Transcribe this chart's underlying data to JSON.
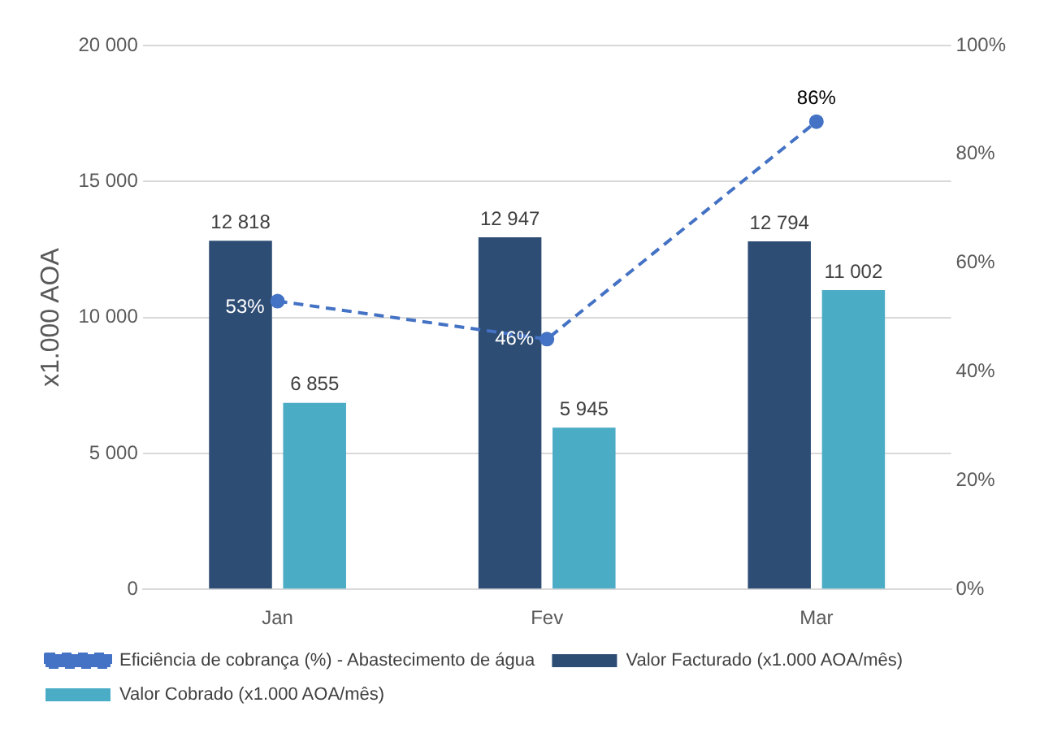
{
  "chart_data": {
    "type": "bar",
    "ylabel": "x1.000 AOA",
    "categories": [
      "Jan",
      "Fev",
      "Mar"
    ],
    "series": [
      {
        "name": "Valor Facturado (x1.000 AOA/mês)",
        "color": "#2e4d75",
        "values": [
          12818,
          12947,
          12794
        ],
        "value_labels": [
          "12 818",
          "12 947",
          "12 794"
        ]
      },
      {
        "name": "Valor Cobrado (x1.000 AOA/mês)",
        "color": "#4bacc6",
        "values": [
          6855,
          5945,
          11002
        ],
        "value_labels": [
          "6 855",
          "5 945",
          "11 002"
        ]
      },
      {
        "name": "Eficiência de cobrança (%) - Abastecimento de água",
        "type": "line",
        "axis": "y2",
        "color": "#4472c4",
        "values": [
          53,
          46,
          86
        ],
        "value_labels": [
          "53%",
          "46%",
          "86%"
        ],
        "marker": "circle",
        "line_style": "dashed"
      }
    ],
    "ylim": [
      0,
      20000
    ],
    "yticks": [
      {
        "value": 0,
        "label": "0"
      },
      {
        "value": 5000,
        "label": "5 000"
      },
      {
        "value": 10000,
        "label": "10 000"
      },
      {
        "value": 15000,
        "label": "15 000"
      },
      {
        "value": 20000,
        "label": "20 000"
      }
    ],
    "y2lim": [
      0,
      100
    ],
    "y2ticks": [
      {
        "value": 0,
        "label": "0%"
      },
      {
        "value": 20,
        "label": "20%"
      },
      {
        "value": 40,
        "label": "40%"
      },
      {
        "value": 60,
        "label": "60%"
      },
      {
        "value": 80,
        "label": "80%"
      },
      {
        "value": 100,
        "label": "100%"
      }
    ],
    "grid": "y",
    "legend": "bottom"
  }
}
